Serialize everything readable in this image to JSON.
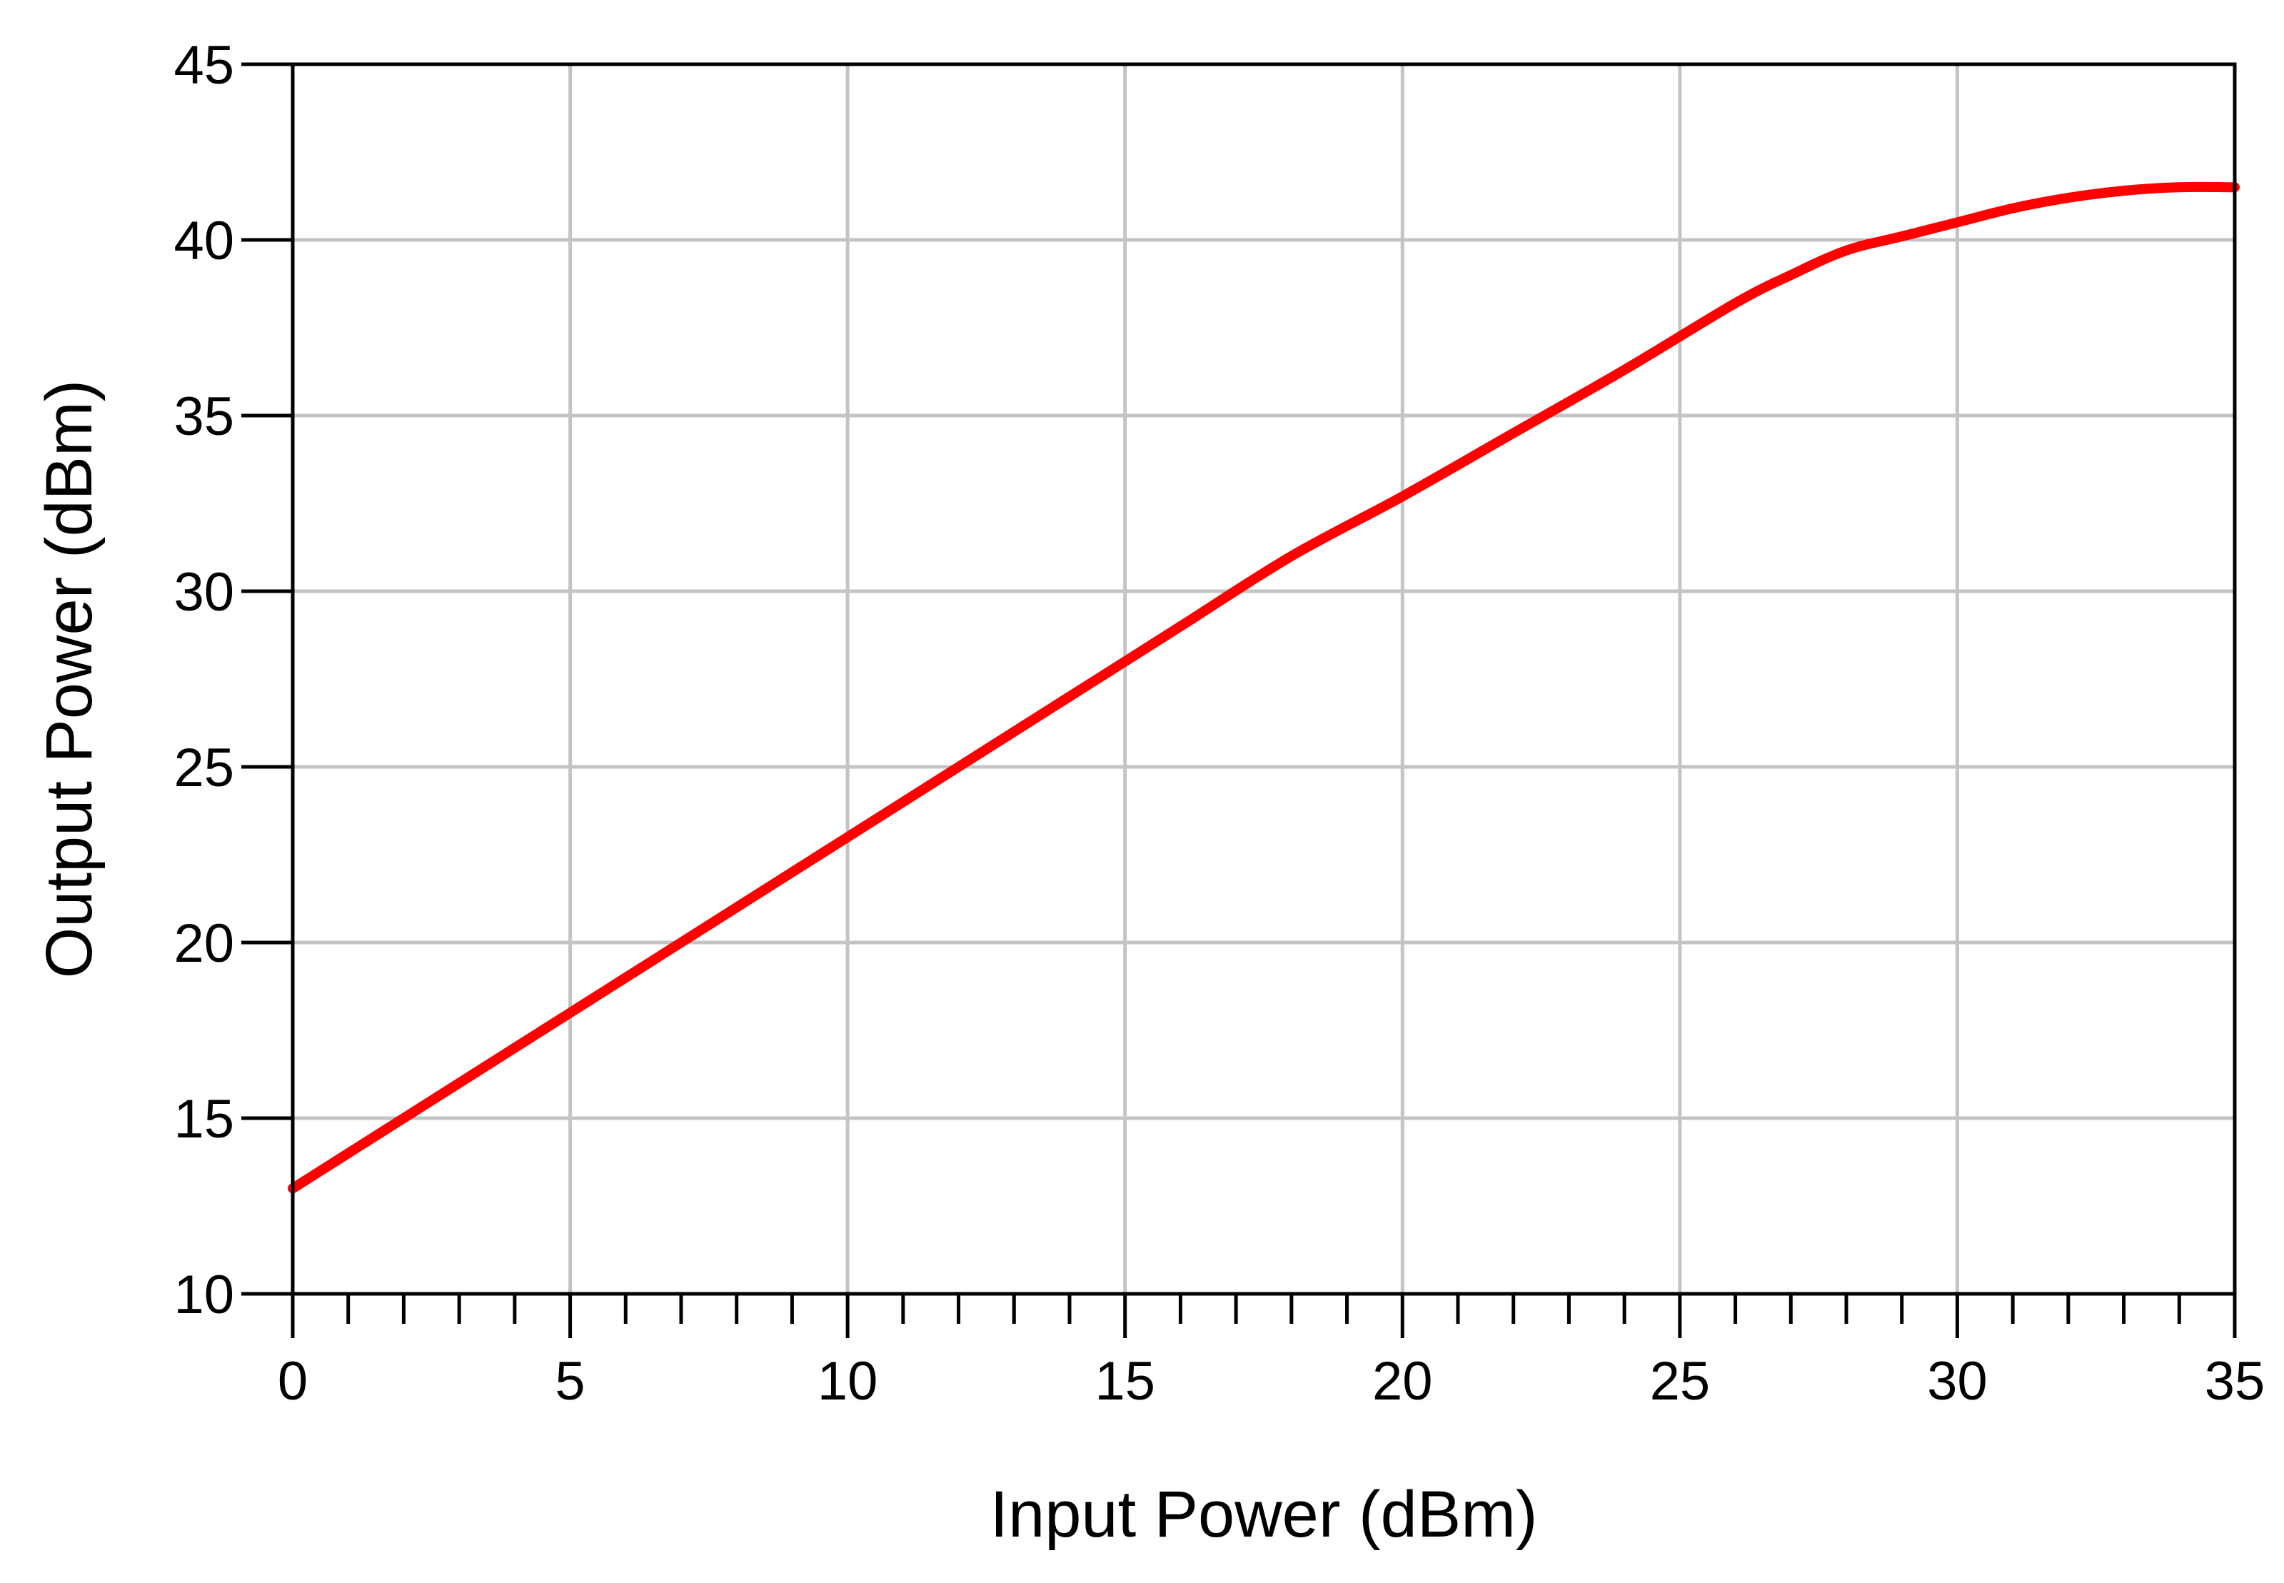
{
  "chart_data": {
    "type": "line",
    "title": "",
    "xlabel": "Input Power (dBm)",
    "ylabel": "Output Power (dBm)",
    "xlim": [
      0,
      35
    ],
    "ylim": [
      10,
      45
    ],
    "xticks": [
      0,
      5,
      10,
      15,
      20,
      25,
      30,
      35
    ],
    "yticks": [
      10,
      15,
      20,
      25,
      30,
      35,
      40,
      45
    ],
    "xtick_labels": [
      "0",
      "5",
      "10",
      "15",
      "20",
      "25",
      "30",
      "35"
    ],
    "ytick_labels": [
      "10",
      "15",
      "20",
      "25",
      "30",
      "35",
      "40",
      "45"
    ],
    "x_minor_step": 1,
    "grid": true,
    "legend": "none",
    "series": [
      {
        "color": "#ff0000",
        "x": [
          0,
          2,
          4,
          6,
          8,
          10,
          12,
          14,
          16,
          18,
          20,
          22,
          24,
          26,
          27,
          28,
          29,
          30,
          31,
          32,
          33,
          34,
          35
        ],
        "y": [
          13.0,
          15.0,
          17.0,
          19.0,
          21.0,
          23.0,
          25.0,
          27.0,
          29.0,
          31.0,
          32.7,
          34.5,
          36.3,
          38.2,
          39.0,
          39.7,
          40.1,
          40.5,
          40.9,
          41.2,
          41.4,
          41.5,
          41.5
        ]
      }
    ]
  }
}
